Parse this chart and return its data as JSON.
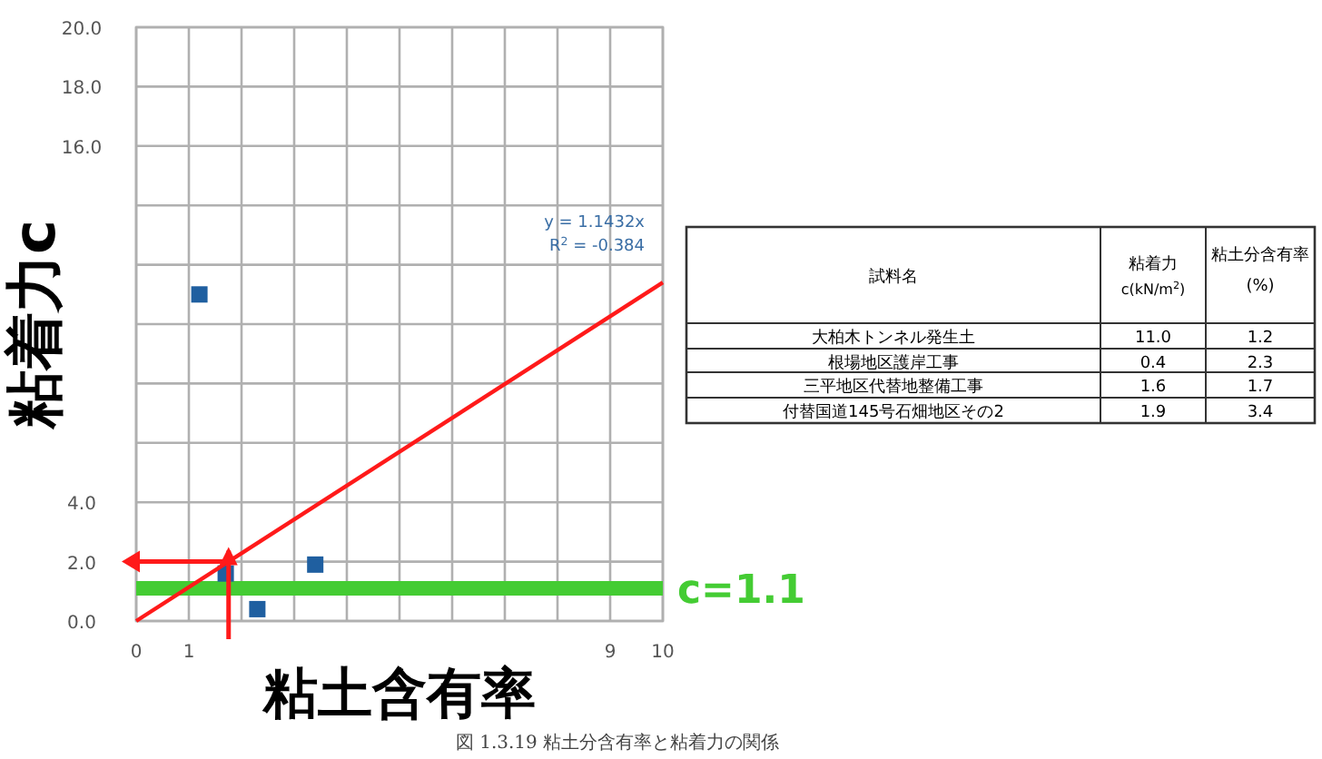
{
  "chart_data": {
    "type": "scatter",
    "xlabel": "粘土含有率",
    "ylabel": "粘着力c",
    "xlim": [
      0,
      10
    ],
    "xticks": [
      0,
      1,
      {
        "value": 2,
        "label": null
      },
      {
        "value": 3,
        "label": null
      },
      {
        "value": 4,
        "label": null
      },
      {
        "value": 5,
        "label": null
      },
      {
        "value": 6,
        "label": null
      },
      {
        "value": 7,
        "label": null
      },
      {
        "value": 8,
        "label": null
      },
      9,
      10
    ],
    "ylim": [
      0,
      20
    ],
    "yticks": [
      {
        "value": 0,
        "label": "0.0"
      },
      {
        "value": 2,
        "label": "2.0"
      },
      {
        "value": 4,
        "label": "4.0"
      },
      {
        "value": 6,
        "label": null
      },
      {
        "value": 8,
        "label": null
      },
      {
        "value": 10,
        "label": null
      },
      {
        "value": 12,
        "label": null
      },
      {
        "value": 14,
        "label": null
      },
      {
        "value": 16,
        "label": "16.0"
      },
      {
        "value": 18,
        "label": "18.0"
      },
      {
        "value": 20,
        "label": "20.0"
      }
    ],
    "grid": true,
    "series": [
      {
        "marker": "square",
        "color": "#1f5fa0",
        "x": [
          1.2,
          2.3,
          1.7,
          3.4
        ],
        "values": [
          11.0,
          0.4,
          1.6,
          1.9
        ]
      },
      {
        "type": "line",
        "color": "#ff1a1a",
        "x": [
          0,
          10
        ],
        "values": [
          0,
          11.4
        ]
      }
    ],
    "ref_lines": [
      {
        "axis": "y",
        "value": 1.1,
        "label": "c=1.1",
        "color": "#44cc33"
      }
    ],
    "annotations": [
      "y = 1.1432x",
      "R$^{2}$ = -0.384",
      "図 1.3.19 粘土分含有率と粘着力の関係",
      "試料名",
      "粘着力 c(kN/m$^{2}$)",
      "粘土分含有率 (%)",
      "大柏木トンネル発生土",
      "11.0",
      "1.2",
      "根場地区護岸工事",
      "0.4",
      "2.3",
      "三平地区代替地整備工事",
      "1.6",
      "1.7",
      "付替国道145号石畑地区その2",
      "1.9",
      "3.4"
    ]
  }
}
